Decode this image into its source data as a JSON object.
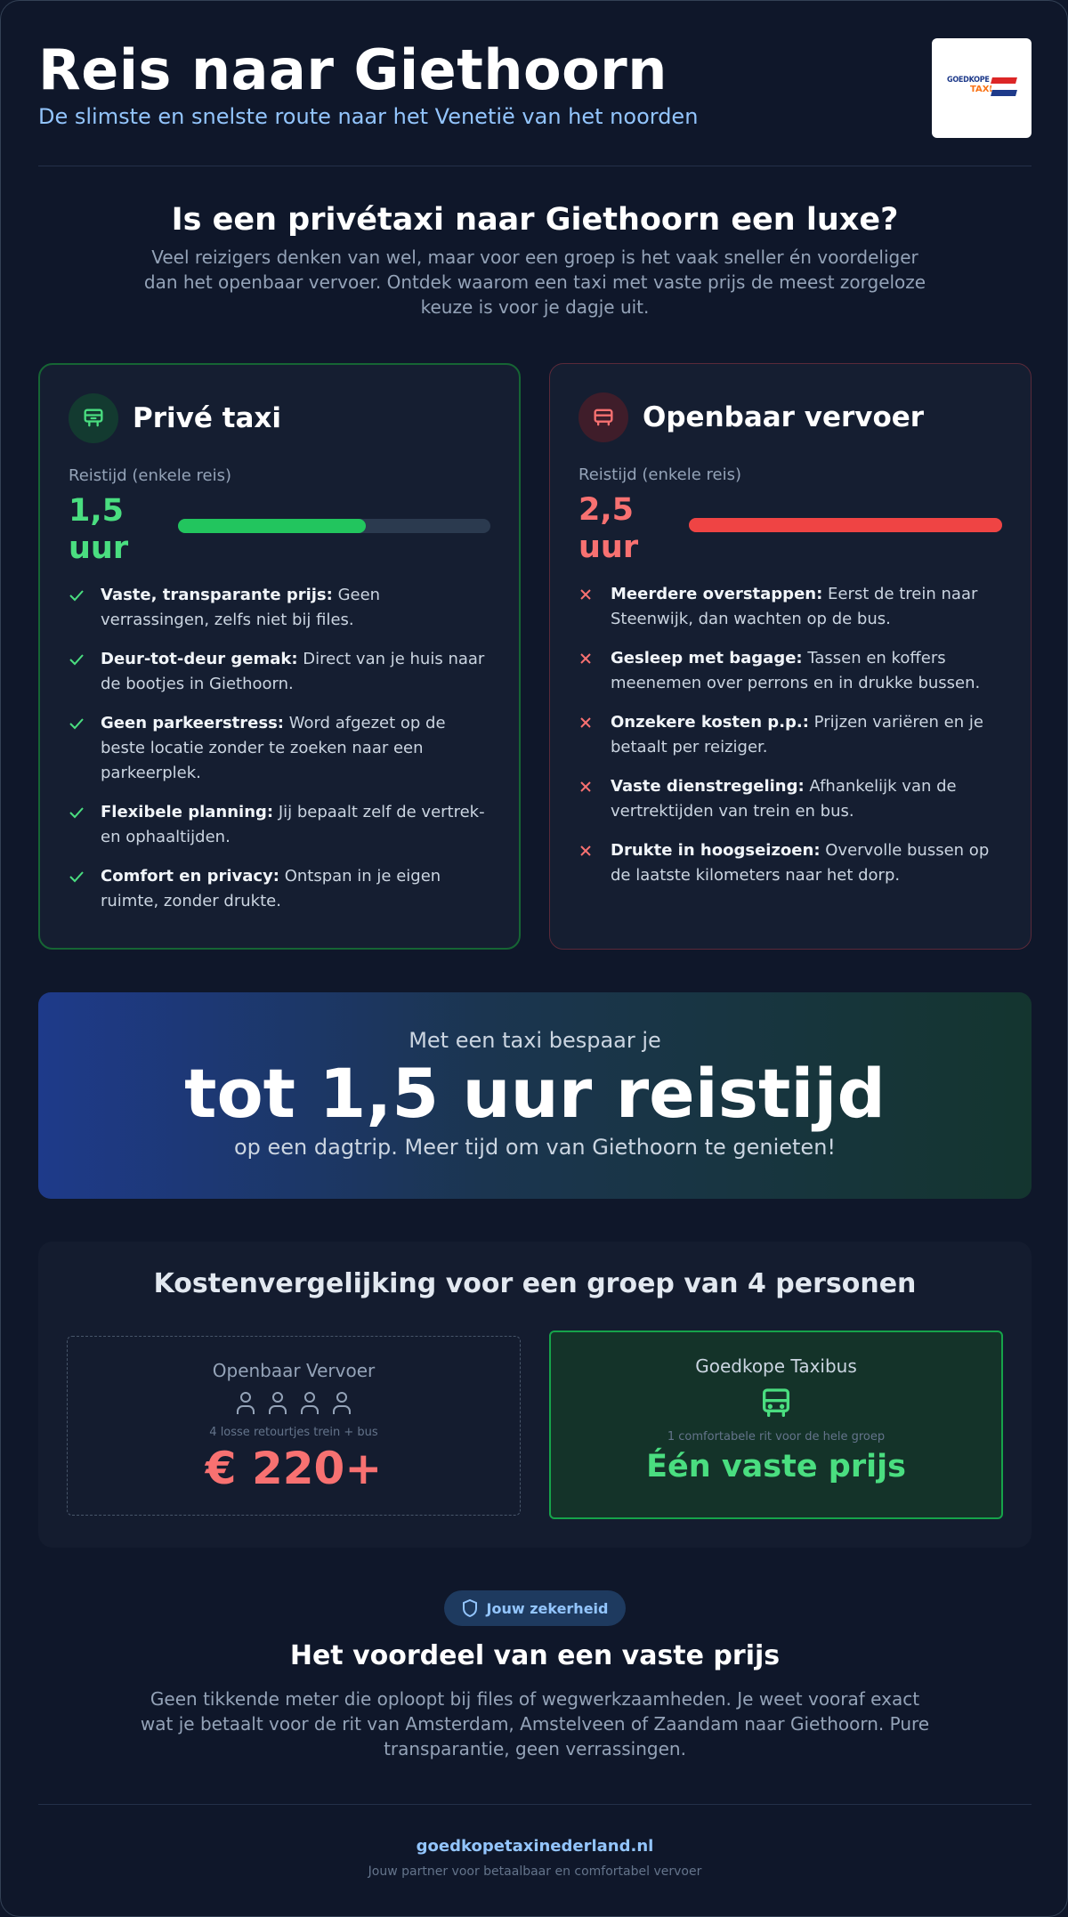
{
  "header": {
    "title": "Reis naar Giethoorn",
    "subtitle": "De slimste en snelste route naar het Venetië van het noorden",
    "logo_text_top": "GOEDKOPE",
    "logo_text_bottom": "TAXI"
  },
  "intro": {
    "heading": "Is een privétaxi naar Giethoorn een luxe?",
    "text": "Veel reizigers denken van wel, maar voor een groep is het vaak sneller én voordeliger dan het openbaar vervoer. Ontdek waarom een taxi met vaste prijs de meest zorgeloze keuze is voor je dagje uit."
  },
  "taxi_card": {
    "title": "Privé taxi",
    "icon": "taxi-icon",
    "travel_label": "Reistijd (enkele reis)",
    "travel_value": "1,5 uur",
    "bar_fraction": 0.6,
    "features": [
      {
        "bold": "Vaste, transparante prijs:",
        "text": " Geen verrassingen, zelfs niet bij files."
      },
      {
        "bold": "Deur-tot-deur gemak:",
        "text": " Direct van je huis naar de bootjes in Giethoorn."
      },
      {
        "bold": "Geen parkeerstress:",
        "text": " Word afgezet op de beste locatie zonder te zoeken naar een parkeerplek."
      },
      {
        "bold": "Flexibele planning:",
        "text": " Jij bepaalt zelf de vertrek- en ophaaltijden."
      },
      {
        "bold": "Comfort en privacy:",
        "text": " Ontspan in je eigen ruimte, zonder drukte."
      }
    ]
  },
  "ov_card": {
    "title": "Openbaar vervoer",
    "icon": "train-icon",
    "travel_label": "Reistijd (enkele reis)",
    "travel_value": "2,5 uur",
    "bar_fraction": 1.0,
    "features": [
      {
        "bold": "Meerdere overstappen:",
        "text": " Eerst de trein naar Steenwijk, dan wachten op de bus."
      },
      {
        "bold": "Gesleep met bagage:",
        "text": " Tassen en koffers meenemen over perrons en in drukke bussen."
      },
      {
        "bold": "Onzekere kosten p.p.:",
        "text": " Prijzen variëren en je betaalt per reiziger."
      },
      {
        "bold": "Vaste dienstregeling:",
        "text": " Afhankelijk van de vertrektijden van trein en bus."
      },
      {
        "bold": "Drukte in hoogseizoen:",
        "text": " Overvolle bussen op de laatste kilometers naar het dorp."
      }
    ]
  },
  "savings": {
    "pre": "Met een taxi bespaar je",
    "big": "tot 1,5 uur reistijd",
    "post": "op een dagtrip. Meer tijd om van Giethoorn te genieten!"
  },
  "cost": {
    "heading": "Kostenvergelijking voor een groep van 4 personen",
    "ov": {
      "label": "Openbaar Vervoer",
      "note": "4 losse retourtjes trein + bus",
      "price": "€ 220+",
      "people_count": 4
    },
    "taxi": {
      "label": "Goedkope Taxibus",
      "note": "1 comfortabele rit voor de hele groep",
      "price": "Één vaste prijs"
    }
  },
  "guarantee": {
    "badge": "Jouw zekerheid",
    "heading": "Het voordeel van een vaste prijs",
    "text": "Geen tikkende meter die oploopt bij files of wegwerkzaamheden. Je weet vooraf exact wat je betaalt voor de rit van Amsterdam, Amstelveen of Zaandam naar Giethoorn. Pure transparantie, geen verrassingen."
  },
  "footer": {
    "site": "goedkopetaxinederland.nl",
    "tagline": "Jouw partner voor betaalbaar en comfortabel vervoer"
  },
  "colors": {
    "background": "#0f172a",
    "accent_green": "#4ade80",
    "accent_red": "#f87171",
    "accent_blue": "#93c5fd"
  }
}
